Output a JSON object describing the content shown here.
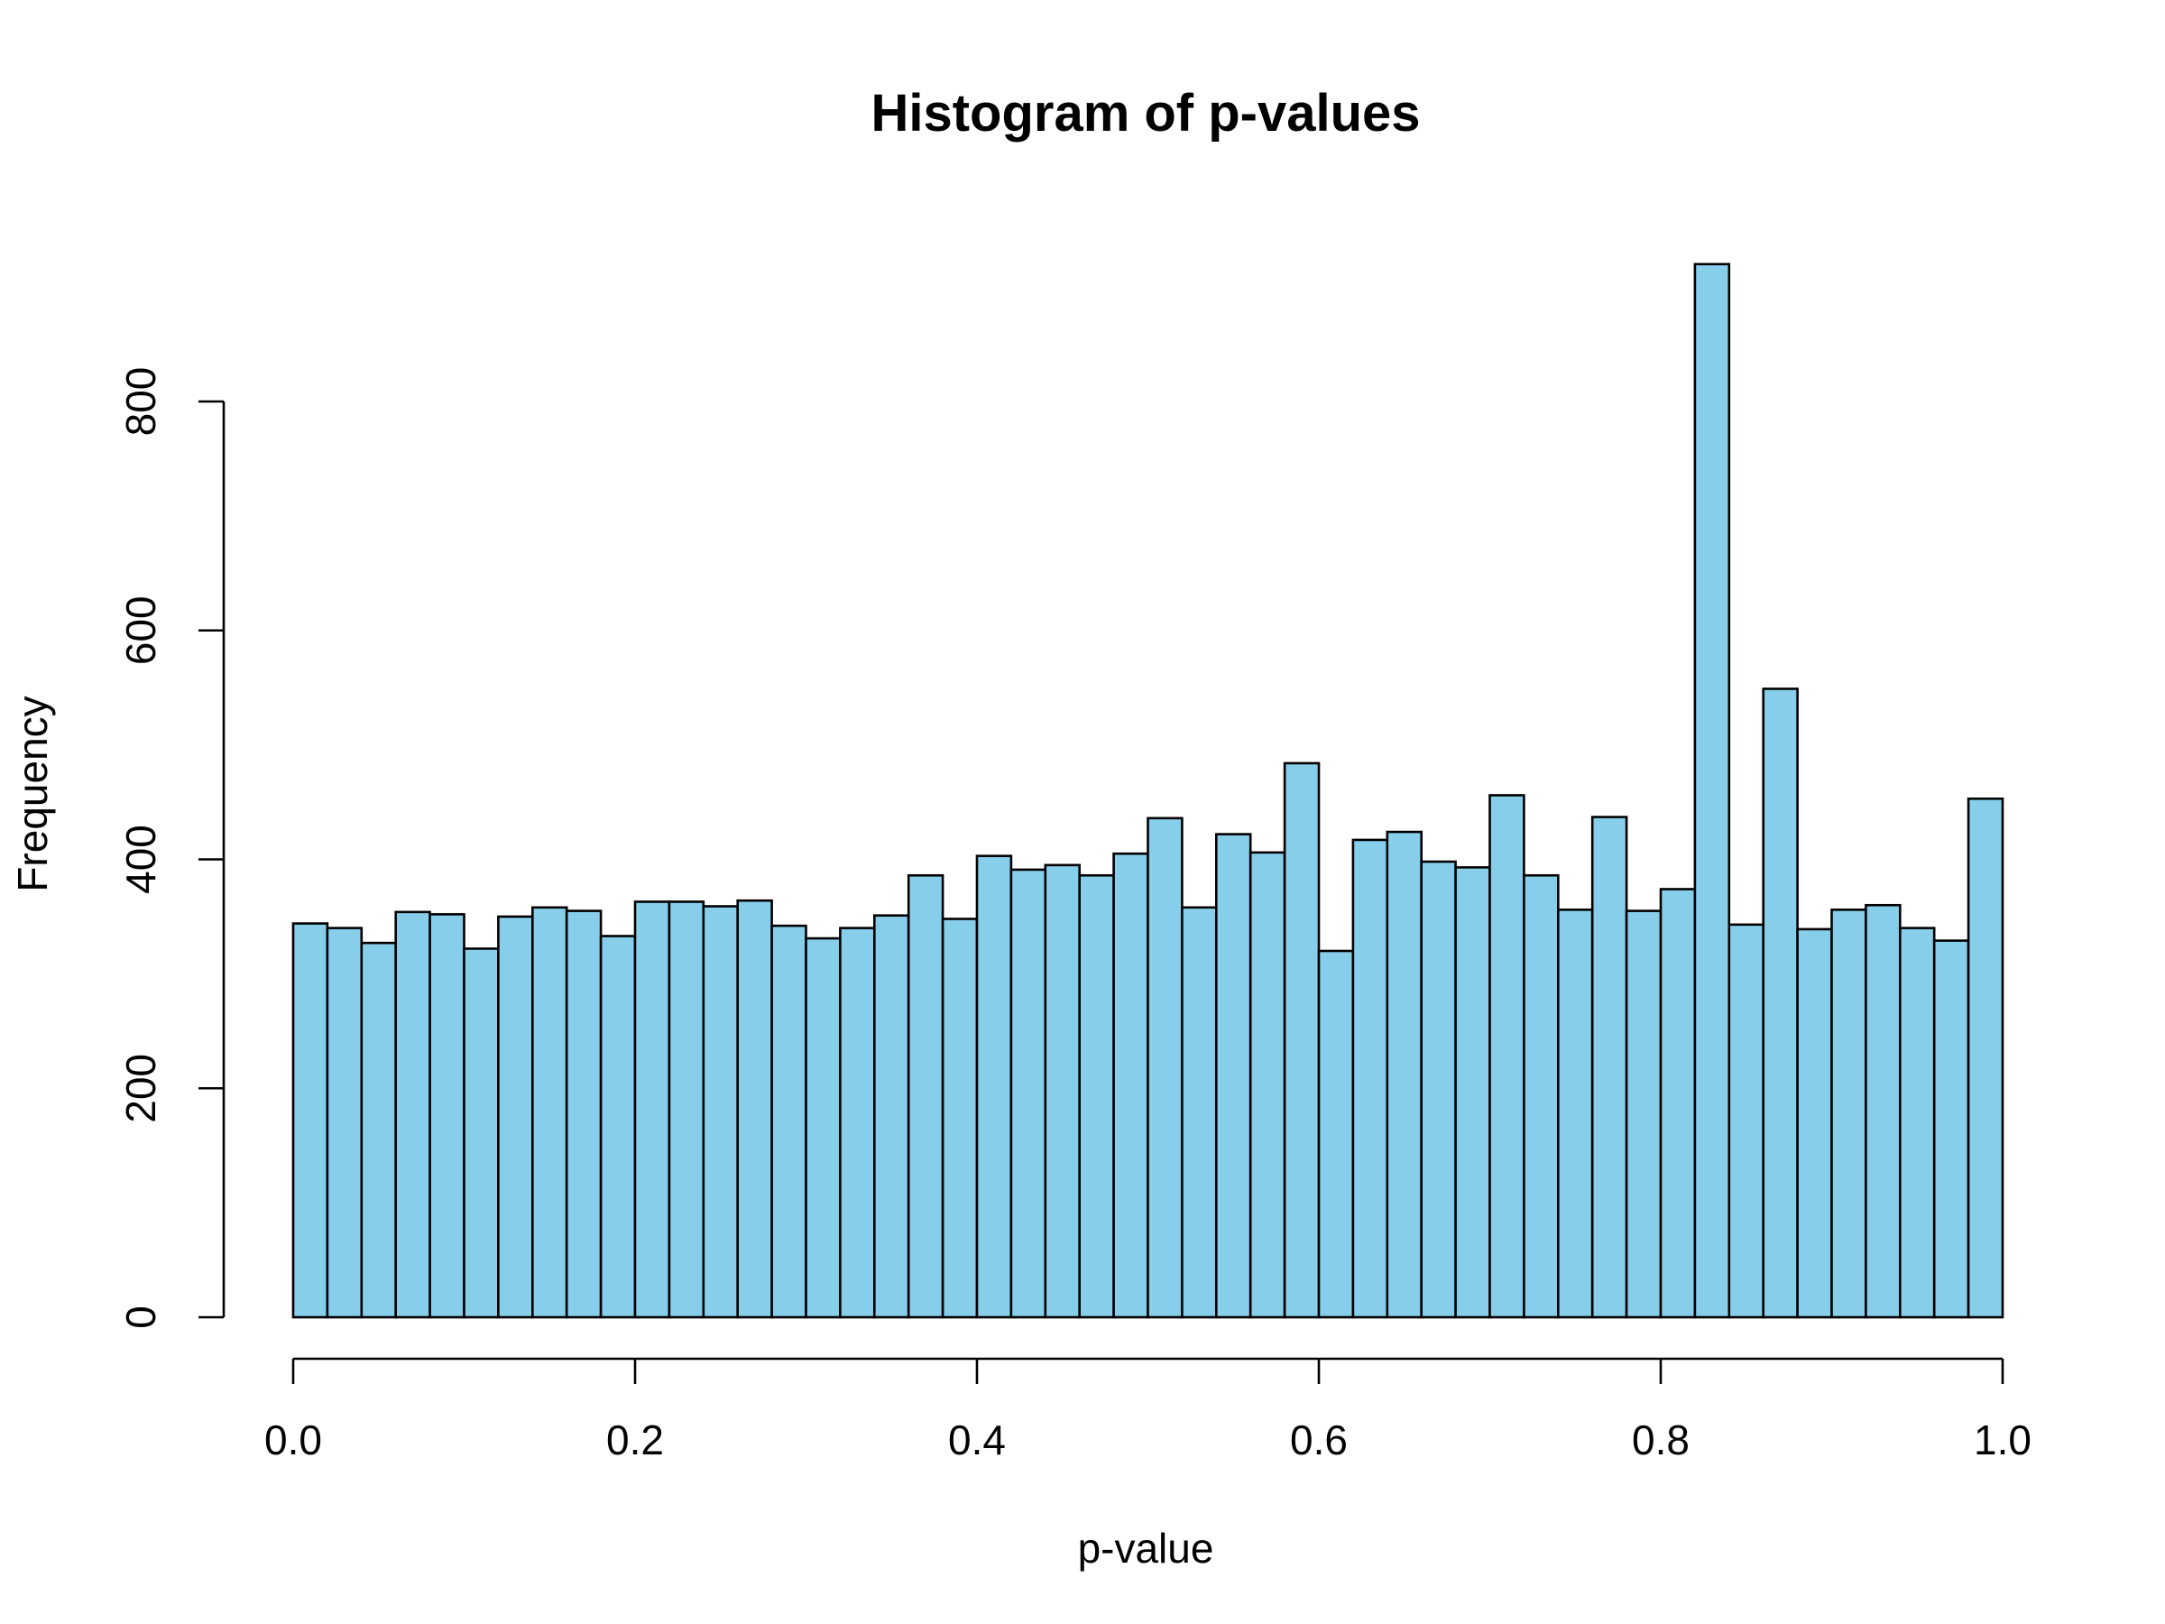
{
  "chart_data": {
    "type": "bar",
    "title": "Histogram of p-values",
    "xlabel": "p-value",
    "ylabel": "Frequency",
    "xlim": [
      0,
      1
    ],
    "ylim": [
      0,
      920
    ],
    "bin_width": 0.02,
    "x_ticks": [
      "0.0",
      "0.2",
      "0.4",
      "0.6",
      "0.8",
      "1.0"
    ],
    "x_tick_values": [
      0,
      0.2,
      0.4,
      0.6,
      0.8,
      1.0
    ],
    "y_ticks": [
      "0",
      "200",
      "400",
      "600",
      "800"
    ],
    "y_tick_values": [
      0,
      200,
      400,
      600,
      800
    ],
    "grid": false,
    "bar_color": "#87CEEB",
    "edge_color": "#000000",
    "x": [
      0.0,
      0.02,
      0.04,
      0.06,
      0.08,
      0.1,
      0.12,
      0.14,
      0.16,
      0.18,
      0.2,
      0.22,
      0.24,
      0.26,
      0.28,
      0.3,
      0.32,
      0.34,
      0.36,
      0.38,
      0.4,
      0.42,
      0.44,
      0.46,
      0.48,
      0.5,
      0.52,
      0.54,
      0.56,
      0.58,
      0.6,
      0.62,
      0.64,
      0.66,
      0.68,
      0.7,
      0.72,
      0.74,
      0.76,
      0.78,
      0.8,
      0.82,
      0.84,
      0.86,
      0.88,
      0.9,
      0.92,
      0.94,
      0.96,
      0.98
    ],
    "values": [
      344,
      340,
      327,
      354,
      352,
      322,
      350,
      358,
      355,
      333,
      363,
      363,
      359,
      364,
      342,
      331,
      340,
      351,
      386,
      348,
      403,
      391,
      395,
      386,
      405,
      436,
      358,
      422,
      406,
      484,
      320,
      417,
      424,
      398,
      393,
      456,
      386,
      356,
      437,
      355,
      374,
      920,
      343,
      549,
      339,
      356,
      360,
      340,
      329,
      453
    ]
  }
}
